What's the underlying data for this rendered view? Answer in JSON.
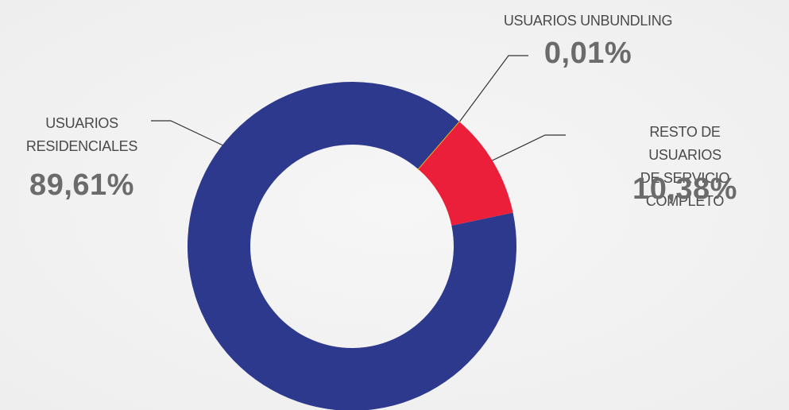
{
  "chart_data": {
    "type": "donut",
    "categories": [
      "USUARIOS\nRESIDENCIALES",
      "USUARIOS UNBUNDLING",
      "RESTO DE USUARIOS\nDE SERVICIO COMPLETO"
    ],
    "values": [
      89.61,
      0.01,
      10.38
    ],
    "value_labels": [
      "89,61%",
      "0,01%",
      "10,38%"
    ],
    "colors": [
      "#2d398c",
      "#f2c21b",
      "#eb1f3a"
    ]
  }
}
